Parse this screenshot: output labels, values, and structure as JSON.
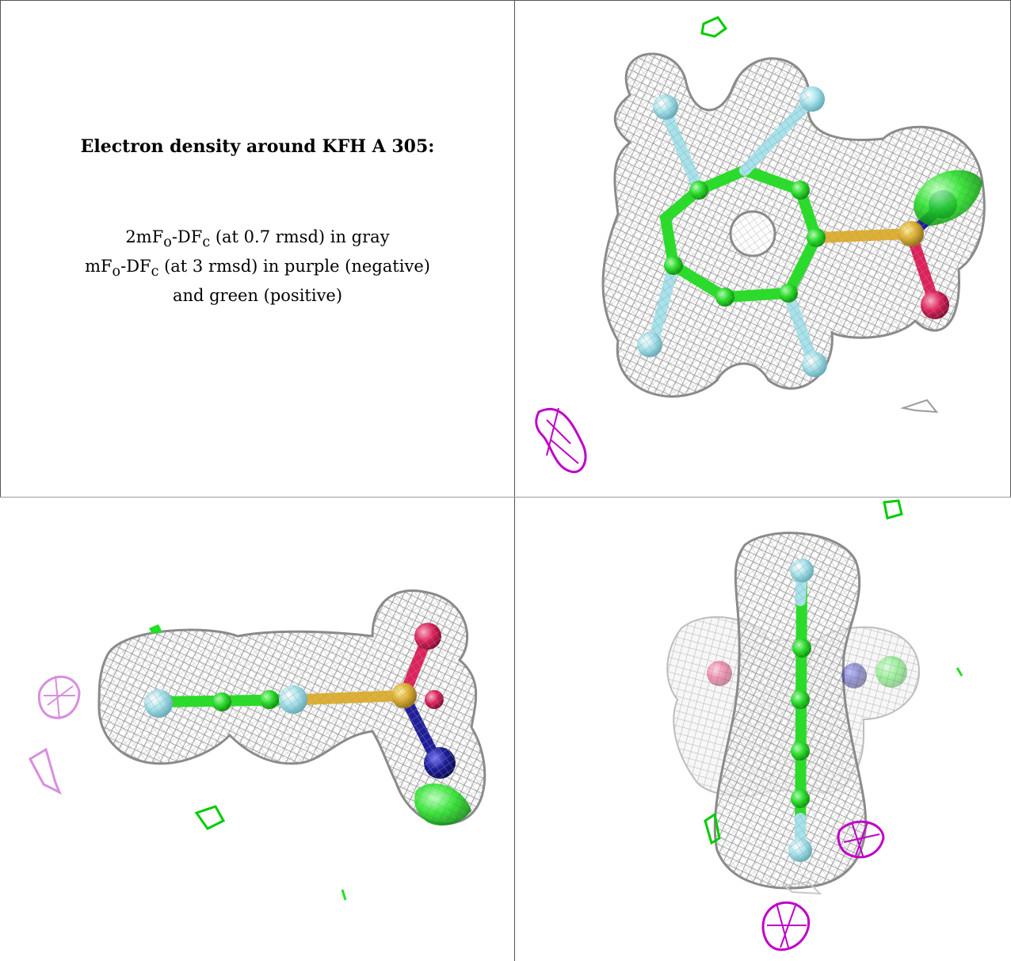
{
  "caption": {
    "title": "Electron density around KFH A 305:",
    "line1_a": "2mF",
    "line1_sub1": "o",
    "line1_b": "-DF",
    "line1_sub2": "c",
    "line1_c": " (at 0.7 rmsd) in gray",
    "line2_a": "mF",
    "line2_sub1": "o",
    "line2_b": "-DF",
    "line2_sub2": "c",
    "line2_c": " (at 3 rmsd) in purple (negative)",
    "line3": "and green (positive)"
  },
  "colors": {
    "mesh_gray": "#8c8c8c",
    "carbon_green": "#22e022",
    "fluorine_cyan": "#a6e3ec",
    "sulfur_yellow": "#e0b030",
    "oxygen_red": "#e0205a",
    "nitrogen_blue": "#1e1e9c",
    "negative_purple": "#c000c8",
    "positive_green": "#00cc00"
  }
}
